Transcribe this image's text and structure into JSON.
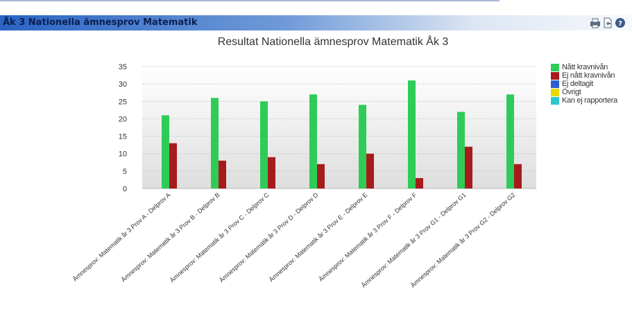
{
  "window": {
    "title": "Åk 3 Nationella ämnesprov Matematik"
  },
  "toolbar_icons": [
    {
      "name": "print-icon"
    },
    {
      "name": "export-icon"
    },
    {
      "name": "help-icon"
    }
  ],
  "colors": {
    "series_green": "#2ecc57",
    "series_red": "#a61c1c",
    "series_blue": "#2f5fcf",
    "series_yellow": "#e8d800",
    "series_cyan": "#2dc7cf"
  },
  "chart_data": {
    "type": "bar",
    "title": "Resultat Nationella ämnesprov Matematik Åk 3",
    "ylim": [
      0,
      35
    ],
    "yticks": [
      0,
      5,
      10,
      15,
      20,
      25,
      30,
      35
    ],
    "grid": true,
    "legend_position": "right",
    "categories": [
      "Ämnesprov: Matematik år 3 Prov A - Delprov A",
      "Ämnesprov: Matematik år 3 Prov B - Delprov B",
      "Ämnesprov: Matematik år 3 Prov C - Delprov C",
      "Ämnesprov: Matematik år 3 Prov D - Delprov D",
      "Ämnesprov: Matematik år 3 Prov E - Delprov E",
      "Ämnesprov: Matematik år 3 Prov F - Delprov F",
      "Ämnesprov: Matematik år 3 Prov G1 - Delprov G1",
      "Ämnesprov: Matematik år 3 Prov G2 - Delprov G2"
    ],
    "series": [
      {
        "name": "Nått kravnivån",
        "color": "#2ecc57",
        "values": [
          21,
          26,
          25,
          27,
          24,
          31,
          22,
          27
        ]
      },
      {
        "name": "Ej nått kravnivån",
        "color": "#a61c1c",
        "values": [
          13,
          8,
          9,
          7,
          10,
          3,
          12,
          7
        ]
      },
      {
        "name": "Ej deltagit",
        "color": "#2f5fcf",
        "values": [
          0,
          0,
          0,
          0,
          0,
          0,
          0,
          0
        ]
      },
      {
        "name": "Övrigt",
        "color": "#e8d800",
        "values": [
          0,
          0,
          0,
          0,
          0,
          0,
          0,
          0
        ]
      },
      {
        "name": "Kan ej rapportera",
        "color": "#2dc7cf",
        "values": [
          0,
          0,
          0,
          0,
          0,
          0,
          0,
          0
        ]
      }
    ]
  }
}
